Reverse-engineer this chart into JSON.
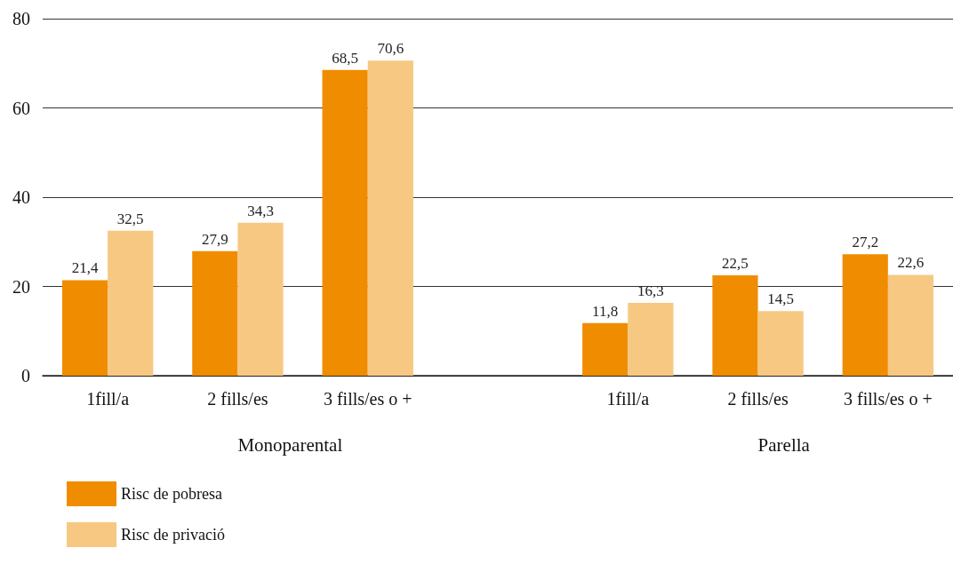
{
  "chart_data": {
    "type": "bar",
    "categories": [
      "1fill/a",
      "2 fills/es",
      "3 fills/es o +",
      null,
      "1fill/a",
      "2 fills/es",
      "3 fills/es o +"
    ],
    "series": [
      {
        "name": "Risc de pobresa",
        "color": "#f08c00",
        "values": [
          21.4,
          27.9,
          68.5,
          null,
          11.8,
          22.5,
          27.2
        ],
        "value_labels": [
          "21,4",
          "27,9",
          "68,5",
          null,
          "11,8",
          "22,5",
          "27,2"
        ]
      },
      {
        "name": "Risc de privació",
        "color": "#f7c882",
        "values": [
          32.5,
          34.3,
          70.6,
          null,
          16.3,
          14.5,
          22.6
        ],
        "value_labels": [
          "32,5",
          "34,3",
          "70,6",
          null,
          "16,3",
          "14,5",
          "22,6"
        ]
      }
    ],
    "annotations": [
      "Monoparental",
      "Parella"
    ],
    "ylim": [
      0,
      80
    ],
    "yticks": [
      0,
      20,
      40,
      60,
      80
    ],
    "grid": "y",
    "legend": "bottom left",
    "data_labels": true
  }
}
